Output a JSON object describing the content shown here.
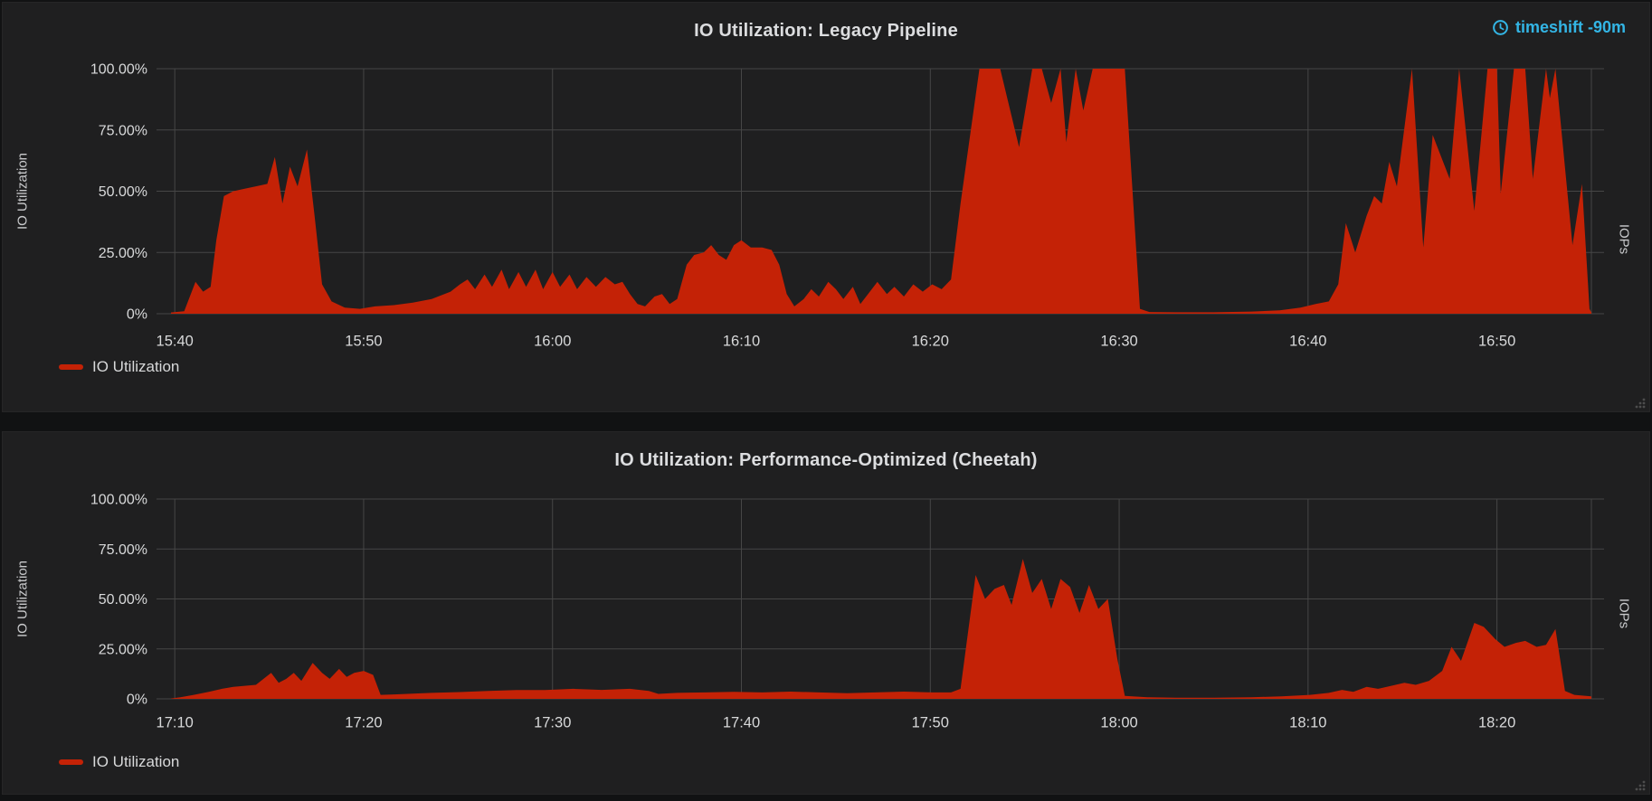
{
  "colors": {
    "series_red": "#c42206",
    "timeshift_blue": "#33b5e5",
    "text": "#d8d9da",
    "grid": "#464646",
    "panel_bg": "#1f1f20",
    "page_bg": "#111213"
  },
  "panels": [
    {
      "title": "IO Utilization: Legacy Pipeline",
      "timeshift": "timeshift -90m",
      "y_axis_label": "IO Utilization",
      "right_axis_label": "IOPs",
      "legend_label": "IO Utilization"
    },
    {
      "title": "IO Utilization: Performance-Optimized (Cheetah)",
      "y_axis_label": "IO Utilization",
      "right_axis_label": "IOPs",
      "legend_label": "IO Utilization"
    }
  ],
  "chart_data": [
    {
      "type": "area",
      "title": "IO Utilization: Legacy Pipeline",
      "ylabel": "IO Utilization",
      "ylabel_right": "IOPs",
      "ylim": [
        0,
        100
      ],
      "grid": true,
      "legend_position": "bottom-left",
      "y_ticks": [
        {
          "label": "100.00%",
          "value": 100
        },
        {
          "label": "75.00%",
          "value": 75
        },
        {
          "label": "50.00%",
          "value": 50
        },
        {
          "label": "25.00%",
          "value": 25
        },
        {
          "label": "0%",
          "value": 0
        }
      ],
      "x_ticks": [
        {
          "label": "15:40",
          "minute": 0
        },
        {
          "label": "15:50",
          "minute": 10
        },
        {
          "label": "16:00",
          "minute": 20
        },
        {
          "label": "16:10",
          "minute": 30
        },
        {
          "label": "16:20",
          "minute": 40
        },
        {
          "label": "16:30",
          "minute": 50
        },
        {
          "label": "16:40",
          "minute": 60
        },
        {
          "label": "16:50",
          "minute": 70
        }
      ],
      "x_range_minutes": [
        -0.2,
        75
      ],
      "series": [
        {
          "name": "IO Utilization",
          "color": "#c42206",
          "unit": "percent",
          "points_minute_percent": [
            [
              -0.2,
              0.5
            ],
            [
              0.5,
              1
            ],
            [
              1.1,
              13
            ],
            [
              1.5,
              9
            ],
            [
              1.9,
              11
            ],
            [
              2.2,
              30
            ],
            [
              2.6,
              48
            ],
            [
              3.1,
              50
            ],
            [
              3.7,
              51
            ],
            [
              4.3,
              52
            ],
            [
              4.9,
              53
            ],
            [
              5.3,
              64
            ],
            [
              5.7,
              45
            ],
            [
              6.1,
              60
            ],
            [
              6.5,
              52
            ],
            [
              7.0,
              67
            ],
            [
              7.4,
              40
            ],
            [
              7.8,
              12
            ],
            [
              8.3,
              5
            ],
            [
              9.0,
              2.5
            ],
            [
              9.8,
              2
            ],
            [
              10.6,
              3
            ],
            [
              11.6,
              3.5
            ],
            [
              12.6,
              4.5
            ],
            [
              13.6,
              6
            ],
            [
              14.6,
              9
            ],
            [
              15.1,
              12
            ],
            [
              15.5,
              14
            ],
            [
              15.9,
              10
            ],
            [
              16.4,
              16
            ],
            [
              16.8,
              11
            ],
            [
              17.3,
              18
            ],
            [
              17.7,
              10
            ],
            [
              18.2,
              17
            ],
            [
              18.6,
              11
            ],
            [
              19.1,
              18
            ],
            [
              19.5,
              10
            ],
            [
              20.0,
              17
            ],
            [
              20.4,
              11
            ],
            [
              20.9,
              16
            ],
            [
              21.3,
              10
            ],
            [
              21.8,
              15
            ],
            [
              22.3,
              11
            ],
            [
              22.8,
              15
            ],
            [
              23.3,
              12
            ],
            [
              23.7,
              13
            ],
            [
              24.1,
              8
            ],
            [
              24.5,
              4
            ],
            [
              24.9,
              3
            ],
            [
              25.4,
              7
            ],
            [
              25.8,
              8
            ],
            [
              26.2,
              4
            ],
            [
              26.6,
              6
            ],
            [
              27.1,
              20
            ],
            [
              27.5,
              24
            ],
            [
              28.0,
              25
            ],
            [
              28.4,
              28
            ],
            [
              28.8,
              24
            ],
            [
              29.2,
              22
            ],
            [
              29.6,
              28
            ],
            [
              30.0,
              30
            ],
            [
              30.5,
              27
            ],
            [
              31.1,
              27
            ],
            [
              31.6,
              26
            ],
            [
              32.0,
              20
            ],
            [
              32.4,
              8
            ],
            [
              32.8,
              3
            ],
            [
              33.3,
              6
            ],
            [
              33.7,
              10
            ],
            [
              34.1,
              7
            ],
            [
              34.6,
              13
            ],
            [
              35.0,
              10
            ],
            [
              35.4,
              6
            ],
            [
              35.9,
              11
            ],
            [
              36.3,
              4
            ],
            [
              36.8,
              9
            ],
            [
              37.2,
              13
            ],
            [
              37.7,
              8
            ],
            [
              38.1,
              11
            ],
            [
              38.6,
              7
            ],
            [
              39.1,
              12
            ],
            [
              39.6,
              9
            ],
            [
              40.1,
              12
            ],
            [
              40.6,
              10
            ],
            [
              41.1,
              14
            ],
            [
              41.6,
              45
            ],
            [
              42.6,
              100
            ],
            [
              43.7,
              100
            ],
            [
              44.7,
              68
            ],
            [
              45.4,
              100
            ],
            [
              45.9,
              100
            ],
            [
              46.4,
              86
            ],
            [
              46.9,
              100
            ],
            [
              47.2,
              70
            ],
            [
              47.7,
              100
            ],
            [
              48.1,
              83
            ],
            [
              48.6,
              100
            ],
            [
              49.4,
              100
            ],
            [
              50.3,
              100
            ],
            [
              51.1,
              2
            ],
            [
              51.6,
              0.7
            ],
            [
              53,
              0.6
            ],
            [
              55,
              0.6
            ],
            [
              57,
              0.9
            ],
            [
              58.5,
              1.4
            ],
            [
              59.6,
              2.5
            ],
            [
              60.4,
              4
            ],
            [
              61.1,
              5
            ],
            [
              61.6,
              12
            ],
            [
              62.0,
              37
            ],
            [
              62.5,
              25
            ],
            [
              63.1,
              40
            ],
            [
              63.5,
              48
            ],
            [
              63.9,
              45
            ],
            [
              64.3,
              62
            ],
            [
              64.7,
              52
            ],
            [
              65.5,
              100
            ],
            [
              66.1,
              27
            ],
            [
              66.6,
              73
            ],
            [
              67.5,
              55
            ],
            [
              68.0,
              100
            ],
            [
              68.8,
              42
            ],
            [
              69.5,
              100
            ],
            [
              70.0,
              100
            ],
            [
              70.2,
              49
            ],
            [
              70.9,
              100
            ],
            [
              71.5,
              100
            ],
            [
              71.9,
              55
            ],
            [
              72.6,
              100
            ],
            [
              72.8,
              88
            ],
            [
              73.1,
              100
            ],
            [
              74.0,
              28
            ],
            [
              74.5,
              53
            ],
            [
              74.9,
              2
            ],
            [
              75,
              0.5
            ]
          ]
        }
      ]
    },
    {
      "type": "area",
      "title": "IO Utilization: Performance-Optimized (Cheetah)",
      "ylabel": "IO Utilization",
      "ylabel_right": "IOPs",
      "ylim": [
        0,
        100
      ],
      "grid": true,
      "legend_position": "bottom-left",
      "y_ticks": [
        {
          "label": "100.00%",
          "value": 100
        },
        {
          "label": "75.00%",
          "value": 75
        },
        {
          "label": "50.00%",
          "value": 50
        },
        {
          "label": "25.00%",
          "value": 25
        },
        {
          "label": "0%",
          "value": 0
        }
      ],
      "x_ticks": [
        {
          "label": "17:10",
          "minute": 0
        },
        {
          "label": "17:20",
          "minute": 10
        },
        {
          "label": "17:30",
          "minute": 20
        },
        {
          "label": "17:40",
          "minute": 30
        },
        {
          "label": "17:50",
          "minute": 40
        },
        {
          "label": "18:00",
          "minute": 50
        },
        {
          "label": "18:10",
          "minute": 60
        },
        {
          "label": "18:20",
          "minute": 70
        }
      ],
      "x_range_minutes": [
        -0.2,
        75
      ],
      "series": [
        {
          "name": "IO Utilization",
          "color": "#c42206",
          "unit": "percent",
          "points_minute_percent": [
            [
              -0.2,
              0.2
            ],
            [
              0.3,
              0.8
            ],
            [
              1.0,
              2
            ],
            [
              1.8,
              3.5
            ],
            [
              2.5,
              5
            ],
            [
              3.1,
              6
            ],
            [
              3.7,
              6.5
            ],
            [
              4.3,
              7
            ],
            [
              4.7,
              10
            ],
            [
              5.1,
              13
            ],
            [
              5.5,
              8
            ],
            [
              5.9,
              10
            ],
            [
              6.3,
              13
            ],
            [
              6.7,
              9
            ],
            [
              7.3,
              18
            ],
            [
              7.8,
              13
            ],
            [
              8.2,
              10
            ],
            [
              8.7,
              15
            ],
            [
              9.1,
              11
            ],
            [
              9.5,
              13
            ],
            [
              10.0,
              14
            ],
            [
              10.5,
              12
            ],
            [
              10.9,
              2
            ],
            [
              11.6,
              2.2
            ],
            [
              12.6,
              2.6
            ],
            [
              13.6,
              3
            ],
            [
              15.1,
              3.4
            ],
            [
              16.6,
              4
            ],
            [
              18.1,
              4.4
            ],
            [
              19.6,
              4.4
            ],
            [
              21.1,
              5
            ],
            [
              22.6,
              4.5
            ],
            [
              24.1,
              5
            ],
            [
              25.1,
              4
            ],
            [
              25.6,
              2.5
            ],
            [
              26.6,
              3
            ],
            [
              28.1,
              3.2
            ],
            [
              29.6,
              3.5
            ],
            [
              31.1,
              3.2
            ],
            [
              32.6,
              3.6
            ],
            [
              34.1,
              3.2
            ],
            [
              35.6,
              2.8
            ],
            [
              37.1,
              3.2
            ],
            [
              38.6,
              3.6
            ],
            [
              40.1,
              3.2
            ],
            [
              41.1,
              3.2
            ],
            [
              41.6,
              5
            ],
            [
              42.4,
              62
            ],
            [
              42.9,
              50
            ],
            [
              43.4,
              55
            ],
            [
              43.9,
              57
            ],
            [
              44.3,
              47
            ],
            [
              44.9,
              70
            ],
            [
              45.4,
              53
            ],
            [
              45.9,
              60
            ],
            [
              46.4,
              45
            ],
            [
              46.9,
              60
            ],
            [
              47.4,
              56
            ],
            [
              47.9,
              43
            ],
            [
              48.4,
              57
            ],
            [
              48.9,
              45
            ],
            [
              49.4,
              50
            ],
            [
              49.9,
              20
            ],
            [
              50.3,
              1.5
            ],
            [
              51.5,
              0.8
            ],
            [
              53,
              0.6
            ],
            [
              55,
              0.6
            ],
            [
              57,
              0.8
            ],
            [
              58.6,
              1.2
            ],
            [
              60.1,
              2
            ],
            [
              61.1,
              3
            ],
            [
              61.8,
              4.5
            ],
            [
              62.4,
              3.5
            ],
            [
              63.1,
              6
            ],
            [
              63.7,
              5
            ],
            [
              64.4,
              6.5
            ],
            [
              65.1,
              8
            ],
            [
              65.7,
              7
            ],
            [
              66.4,
              9
            ],
            [
              67.1,
              14
            ],
            [
              67.6,
              26
            ],
            [
              68.1,
              19
            ],
            [
              68.8,
              38
            ],
            [
              69.3,
              36
            ],
            [
              69.9,
              30
            ],
            [
              70.4,
              26
            ],
            [
              71.0,
              28
            ],
            [
              71.5,
              29
            ],
            [
              72.1,
              26
            ],
            [
              72.6,
              27
            ],
            [
              73.1,
              35
            ],
            [
              73.6,
              4
            ],
            [
              74.1,
              2
            ],
            [
              75,
              1.2
            ]
          ]
        }
      ]
    }
  ]
}
